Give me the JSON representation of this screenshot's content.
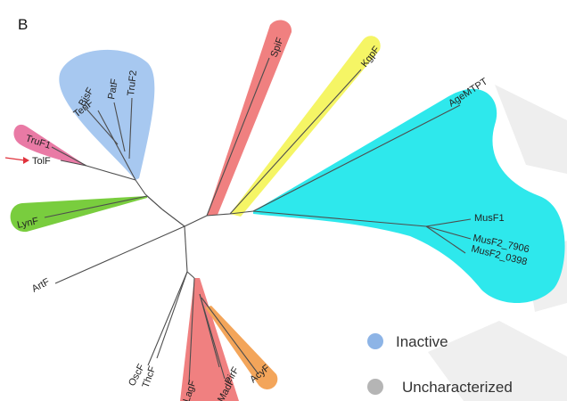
{
  "panel_label": "B",
  "clades": {
    "spf": {
      "label": "SpiF",
      "color": "#f08080"
    },
    "kgpf": {
      "label": "KgpF",
      "color": "#f5f565"
    },
    "musf": {
      "color": "#2ee8ec",
      "labels": [
        "AgeMTPT",
        "MusF1",
        "MusF2_7906",
        "MusF2_0398"
      ]
    },
    "blue": {
      "color": "#a7c8f0",
      "labels": [
        "BisF",
        "TenF",
        "PatF",
        "TruF2"
      ]
    },
    "pink": {
      "color": "#e97aa5",
      "labels": [
        "TruF1",
        "TolF"
      ]
    },
    "lynf": {
      "label": "LynF",
      "color": "#79cd3e"
    },
    "bottom_red": {
      "color": "#f08080",
      "labels": [
        "LagF",
        "PirF",
        "MadF"
      ]
    },
    "acyf": {
      "label": "AcyF",
      "color": "#f3a55a"
    }
  },
  "leaves": {
    "artf": "ArtF",
    "oscf": "OscF",
    "thcf": "ThcF"
  },
  "marker": {
    "target": "TolF",
    "color": "#e0323c"
  },
  "legend": [
    {
      "label": "Inactive",
      "color": "#8db4e6"
    },
    {
      "label": "Uncharacterized",
      "color": "#b5b5b5"
    }
  ]
}
